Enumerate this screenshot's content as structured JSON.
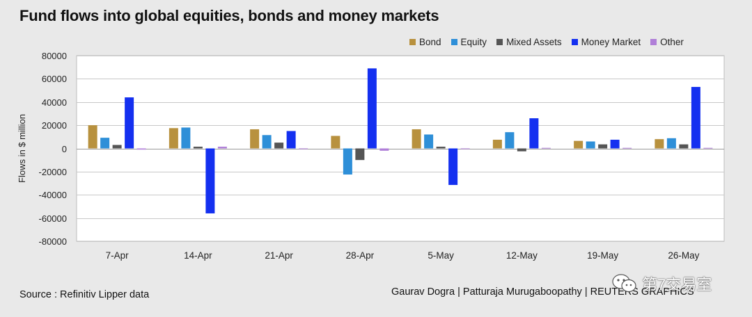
{
  "chart_data": {
    "type": "bar",
    "title": "Fund flows into global equities, bonds and money markets",
    "ylabel": "Flows in $ million",
    "xlabel": "",
    "categories": [
      "7-Apr",
      "14-Apr",
      "21-Apr",
      "28-Apr",
      "5-May",
      "12-May",
      "19-May",
      "26-May"
    ],
    "ylim": [
      -80000,
      80000
    ],
    "yticks": [
      80000,
      60000,
      40000,
      20000,
      0,
      -20000,
      -40000,
      -60000,
      -80000
    ],
    "grid": true,
    "legend_position": "top-right",
    "series": [
      {
        "name": "Bond",
        "color": "#b8913e",
        "values": [
          20000,
          17500,
          16500,
          10800,
          16500,
          7500,
          6500,
          8000
        ]
      },
      {
        "name": "Equity",
        "color": "#2e8fd8",
        "values": [
          9200,
          18000,
          11500,
          -22500,
          12000,
          14000,
          6000,
          8800
        ]
      },
      {
        "name": "Mixed Assets",
        "color": "#555555",
        "values": [
          3000,
          1500,
          5000,
          -10000,
          1500,
          -2500,
          3500,
          3500
        ]
      },
      {
        "name": "Money Market",
        "color": "#1430f0",
        "values": [
          44000,
          -56000,
          15000,
          69000,
          -31500,
          26000,
          7500,
          53000
        ]
      },
      {
        "name": "Other",
        "color": "#b07fd8",
        "values": [
          -1000,
          1500,
          -500,
          -2000,
          -500,
          500,
          500,
          500
        ]
      }
    ]
  },
  "source": "Source : Refinitiv Lipper data",
  "credit": "Gaurav Dogra | Patturaja Murugaboopathy | REUTERS GRAPHICS",
  "watermark": {
    "text": "第7交易室",
    "icon": "wechat-icon"
  }
}
